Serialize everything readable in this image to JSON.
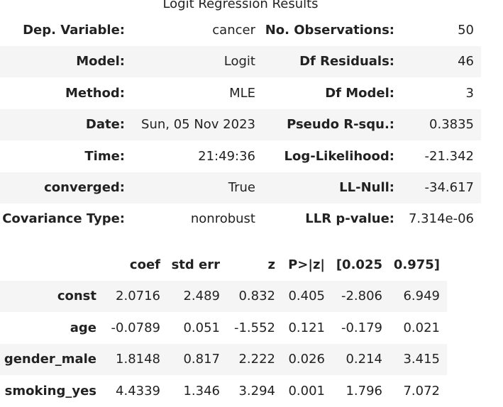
{
  "title": "Logit Regression Results",
  "info_table": {
    "rows": [
      [
        "Dep. Variable:",
        "cancer",
        "No. Observations:",
        "50"
      ],
      [
        "Model:",
        "Logit",
        "Df Residuals:",
        "46"
      ],
      [
        "Method:",
        "MLE",
        "Df Model:",
        "3"
      ],
      [
        "Date:",
        "Sun, 05 Nov 2023",
        "Pseudo R-squ.:",
        "0.3835"
      ],
      [
        "Time:",
        "21:49:36",
        "Log-Likelihood:",
        "-21.342"
      ],
      [
        "converged:",
        "True",
        "LL-Null:",
        "-34.617"
      ],
      [
        "Covariance Type:",
        "nonrobust",
        "LLR p-value:",
        "7.314e-06"
      ]
    ]
  },
  "coef_table": {
    "header": [
      "coef",
      "std err",
      "z",
      "P>|z|",
      "[0.025",
      "0.975]"
    ],
    "rows": [
      [
        "const",
        "2.0716",
        "2.489",
        "0.832",
        "0.405",
        "-2.806",
        "6.949"
      ],
      [
        "age",
        "-0.0789",
        "0.051",
        "-1.552",
        "0.121",
        "-0.179",
        "0.021"
      ],
      [
        "gender_male",
        "1.8148",
        "0.817",
        "2.222",
        "0.026",
        "0.214",
        "3.415"
      ],
      [
        "smoking_yes",
        "4.4339",
        "1.346",
        "3.294",
        "0.001",
        "1.796",
        "7.072"
      ]
    ]
  }
}
